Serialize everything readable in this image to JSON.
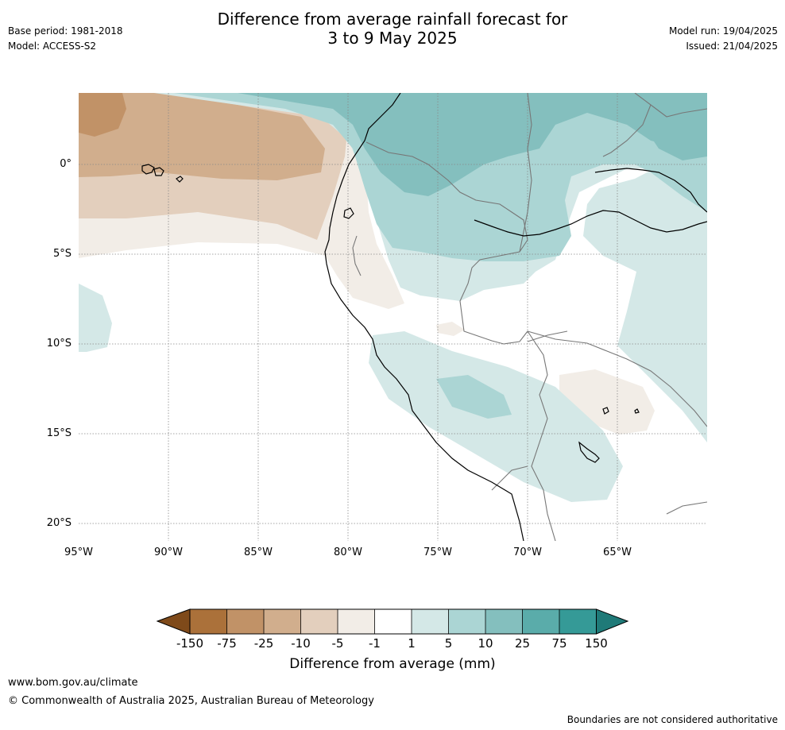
{
  "title_line1": "Difference from average rainfall forecast for",
  "title_line2": "3 to 9 May 2025",
  "meta_left": [
    "Base period: 1981-2018",
    "Model: ACCESS-S2"
  ],
  "meta_right": [
    "Model run: 19/04/2025",
    "Issued: 21/04/2025"
  ],
  "lat_labels": [
    "0°",
    "5°S",
    "10°S",
    "15°S",
    "20°S"
  ],
  "lon_labels": [
    "95°W",
    "90°W",
    "85°W",
    "80°W",
    "75°W",
    "70°W",
    "65°W"
  ],
  "colorbar": {
    "title": "Difference from average (mm)",
    "ticks": [
      "-150",
      "-75",
      "-25",
      "-10",
      "-5",
      "-1",
      "1",
      "5",
      "10",
      "25",
      "75",
      "150"
    ],
    "colors": [
      "#7f4a1a",
      "#ab713a",
      "#c19267",
      "#d1ae8d",
      "#e3cfbd",
      "#f2ede7",
      "#ffffff",
      "#d4e8e7",
      "#abd5d4",
      "#84bfbe",
      "#5aacaa",
      "#359a97",
      "#1f7a78"
    ]
  },
  "footer": {
    "url": "www.bom.gov.au/climate",
    "copyright": "© Commonwealth of Australia 2025, Australian Bureau of Meteorology",
    "disclaimer": "Boundaries are not considered authoritative"
  }
}
